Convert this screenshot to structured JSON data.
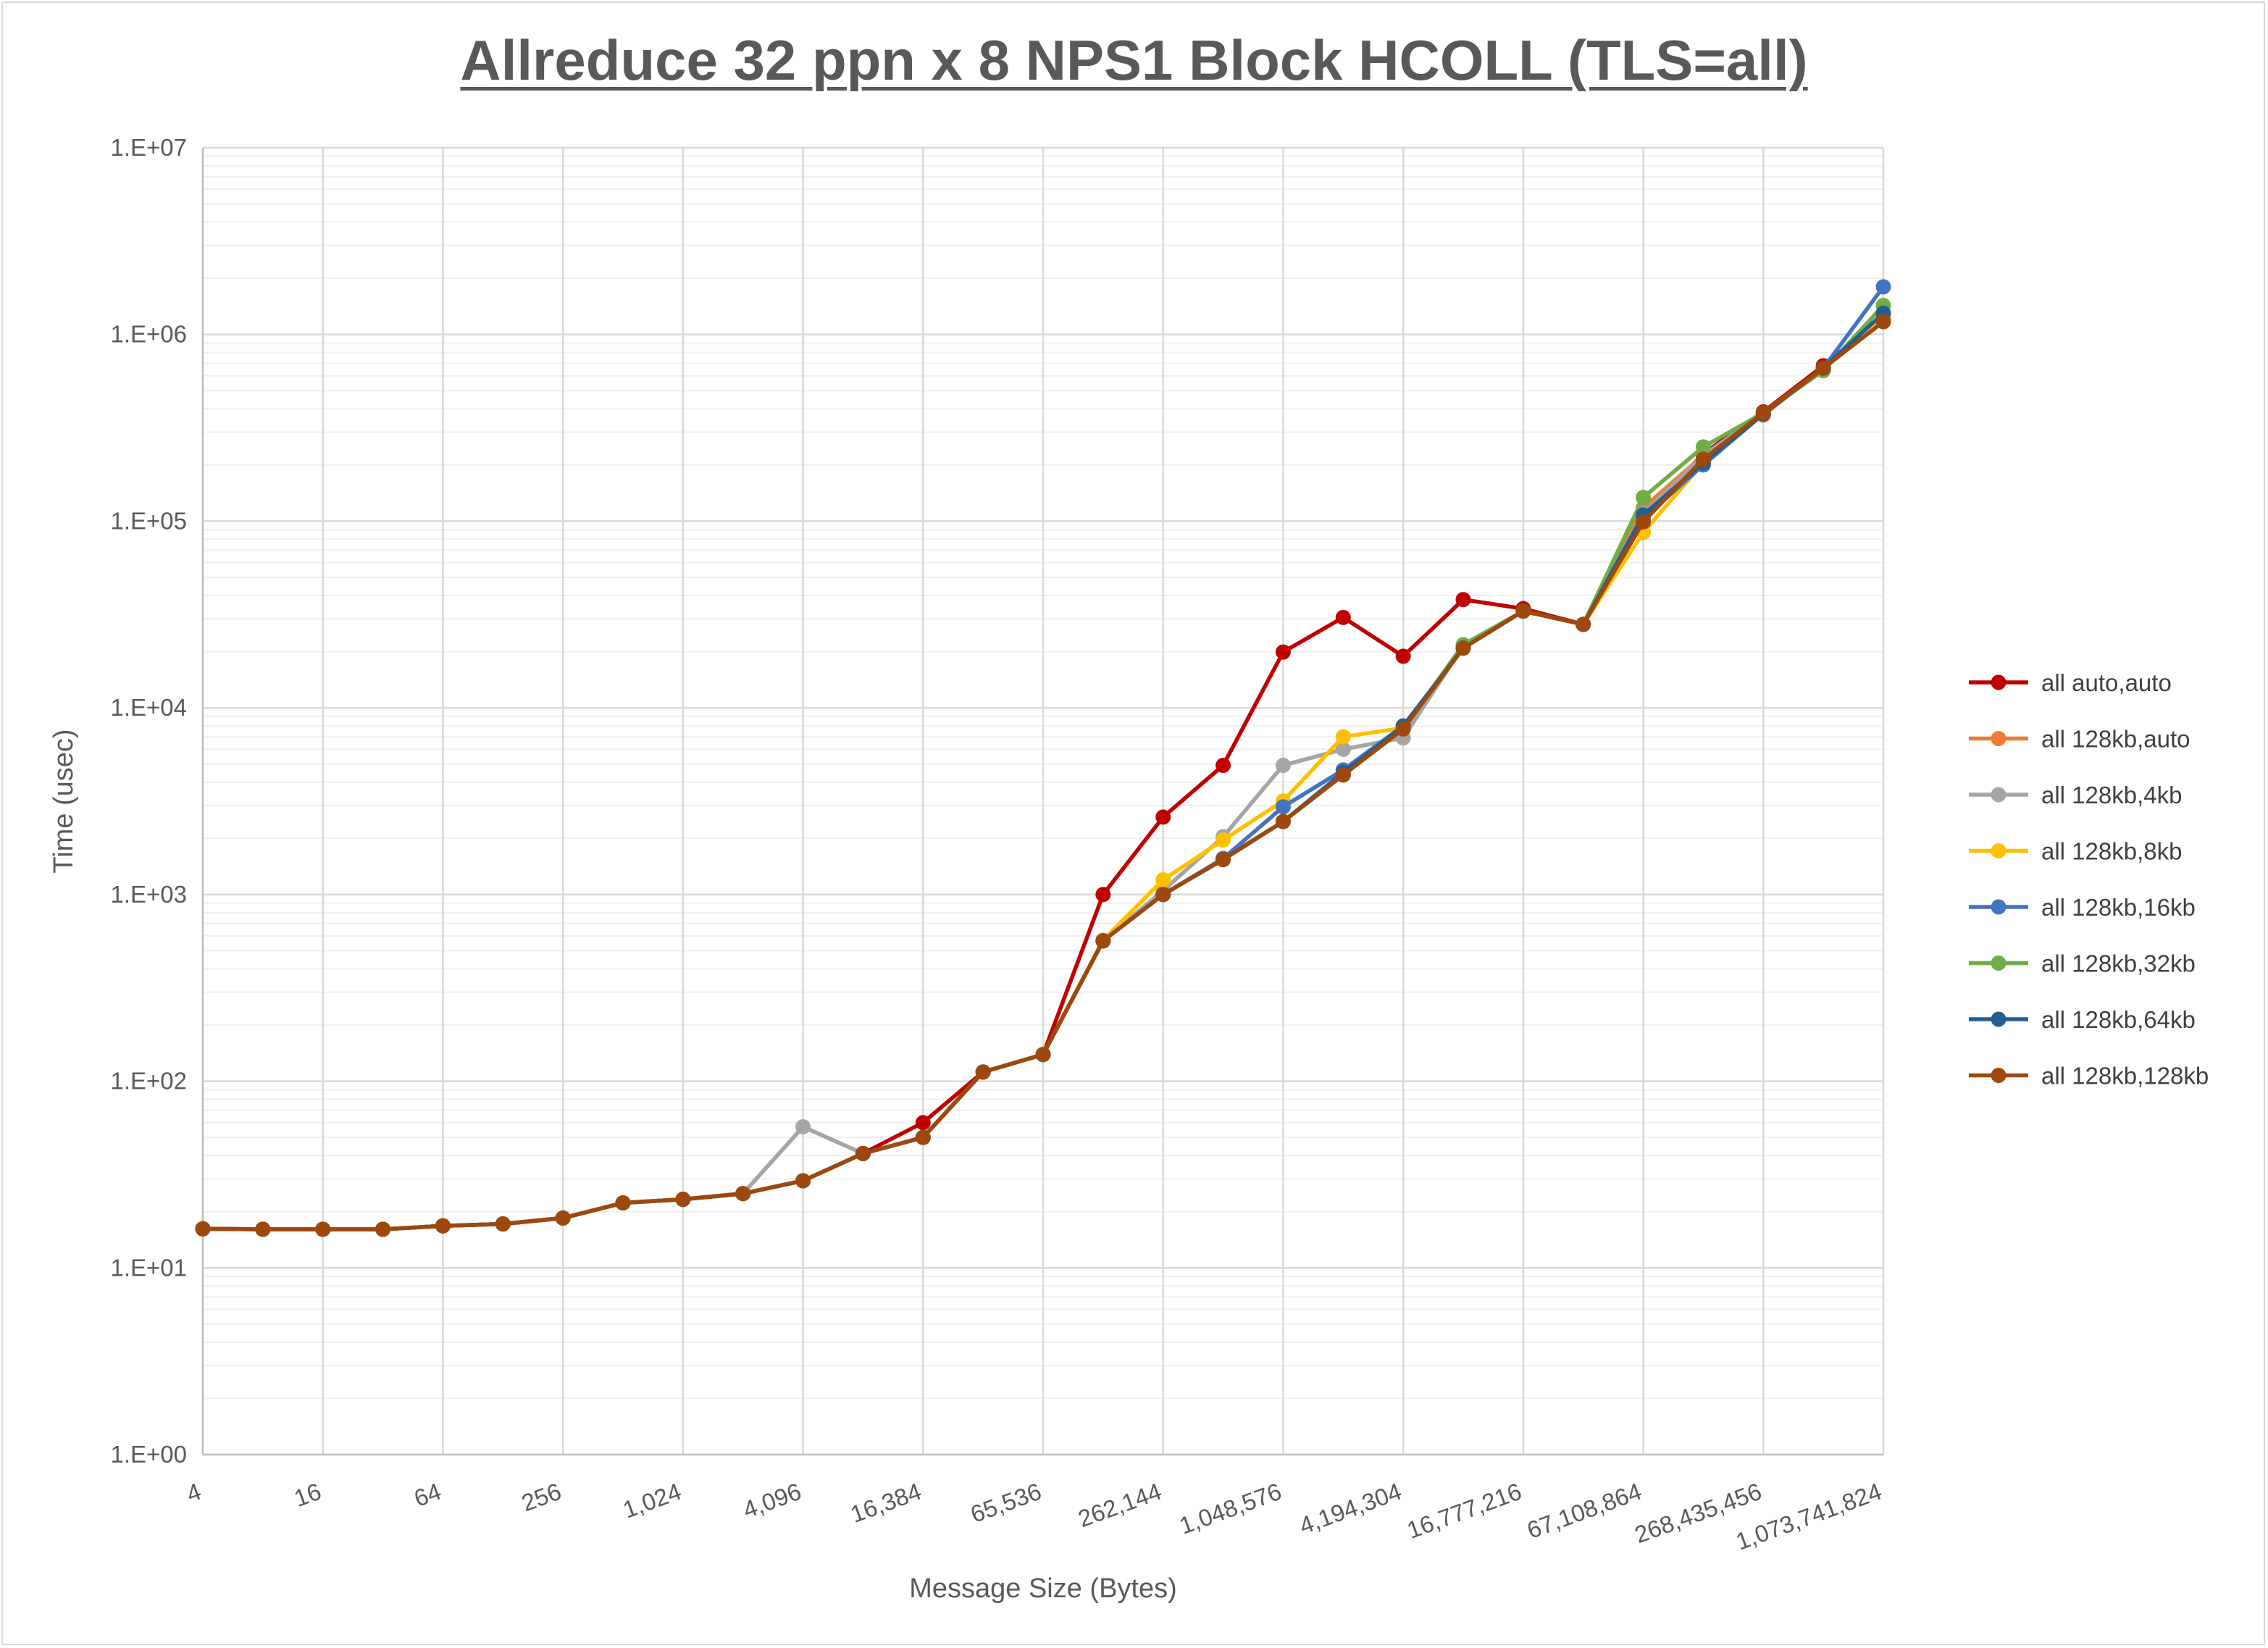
{
  "chart_data": {
    "type": "line",
    "title": "Allreduce 32 ppn x 8 NPS1 Block HCOLL (TLS=all)",
    "xlabel": "Message Size (Bytes)",
    "ylabel": "Time (usec)",
    "y_scale": "log",
    "ylim": [
      1,
      10000000
    ],
    "grid": true,
    "legend_position": "right",
    "x": [
      4,
      8,
      16,
      32,
      64,
      128,
      256,
      512,
      1024,
      2048,
      4096,
      8192,
      16384,
      32768,
      65536,
      131072,
      262144,
      524288,
      1048576,
      2097152,
      4194304,
      8388608,
      16777216,
      33554432,
      67108864,
      134217728,
      268435456,
      536870912,
      1073741824
    ],
    "x_tick_labels": [
      "4",
      "16",
      "64",
      "256",
      "1,024",
      "4,096",
      "16,384",
      "65,536",
      "262,144",
      "1,048,576",
      "4,194,304",
      "16,777,216",
      "67,108,864",
      "268,435,456",
      "1,073,741,824"
    ],
    "y_tick_labels": [
      "1.E+00",
      "1.E+01",
      "1.E+02",
      "1.E+03",
      "1.E+04",
      "1.E+05",
      "1.E+06",
      "1.E+07"
    ],
    "series": [
      {
        "name": "all auto,auto",
        "color": "#C00000",
        "values": [
          16.2,
          16.1,
          16.1,
          16.1,
          16.8,
          17.2,
          18.5,
          22.3,
          23.3,
          25,
          29.3,
          41,
          60,
          112,
          139,
          1000,
          2600,
          4920,
          19900,
          30500,
          18900,
          38000,
          34000,
          28000,
          105000,
          230000,
          385000,
          680000,
          1250000
        ]
      },
      {
        "name": "all 128kb,auto",
        "color": "#ED7D31",
        "values": [
          16.2,
          16.1,
          16.1,
          16.1,
          16.8,
          17.2,
          18.5,
          22.3,
          23.3,
          25,
          29.3,
          41,
          50,
          112,
          139,
          565,
          1000,
          1560,
          2460,
          4400,
          7700,
          20900,
          33000,
          28000,
          118000,
          225000,
          370000,
          660000,
          1200000
        ]
      },
      {
        "name": "all 128kb,4kb",
        "color": "#A5A5A5",
        "values": [
          16.2,
          16.1,
          16.1,
          16.1,
          16.8,
          17.2,
          18.5,
          22.3,
          23.3,
          25,
          57,
          41,
          50,
          112,
          139,
          565,
          1050,
          2040,
          4920,
          6000,
          6900,
          21500,
          33000,
          28000,
          110000,
          225000,
          380000,
          660000,
          1250000
        ]
      },
      {
        "name": "all 128kb,8kb",
        "color": "#FFC000",
        "values": [
          16.2,
          16.1,
          16.1,
          16.1,
          16.8,
          17.2,
          18.5,
          22.3,
          23.3,
          25,
          29.3,
          41,
          50,
          112,
          139,
          570,
          1200,
          1960,
          3170,
          7000,
          7800,
          20900,
          33000,
          28000,
          87000,
          205000,
          380000,
          660000,
          1250000
        ]
      },
      {
        "name": "all 128kb,16kb",
        "color": "#4472C4",
        "values": [
          16.2,
          16.1,
          16.1,
          16.1,
          16.8,
          17.2,
          18.5,
          22.3,
          23.3,
          25,
          29.3,
          41,
          50,
          112,
          139,
          565,
          1000,
          1560,
          2950,
          4650,
          8000,
          20900,
          33000,
          28000,
          103000,
          200000,
          375000,
          660000,
          1800000
        ]
      },
      {
        "name": "all 128kb,32kb",
        "color": "#70AD47",
        "values": [
          16.2,
          16.1,
          16.1,
          16.1,
          16.8,
          17.2,
          18.5,
          22.3,
          23.3,
          25,
          29.3,
          41,
          50,
          112,
          139,
          565,
          1000,
          1540,
          2460,
          4370,
          7700,
          21800,
          33000,
          28000,
          134000,
          250000,
          380000,
          640000,
          1430000
        ]
      },
      {
        "name": "all 128kb,64kb",
        "color": "#255E91",
        "values": [
          16.2,
          16.1,
          16.1,
          16.1,
          16.8,
          17.2,
          18.5,
          22.3,
          23.3,
          25,
          29.3,
          41,
          50,
          112,
          139,
          565,
          1000,
          1540,
          2460,
          4500,
          8000,
          20900,
          33000,
          28000,
          108000,
          205000,
          375000,
          660000,
          1300000
        ]
      },
      {
        "name": "all 128kb,128kb",
        "color": "#9E480E",
        "values": [
          16.2,
          16.1,
          16.1,
          16.1,
          16.8,
          17.2,
          18.5,
          22.3,
          23.3,
          25,
          29.3,
          41,
          50,
          112,
          139,
          565,
          1000,
          1540,
          2460,
          4370,
          7700,
          20900,
          33000,
          28000,
          99000,
          215000,
          380000,
          660000,
          1170000
        ]
      }
    ]
  }
}
